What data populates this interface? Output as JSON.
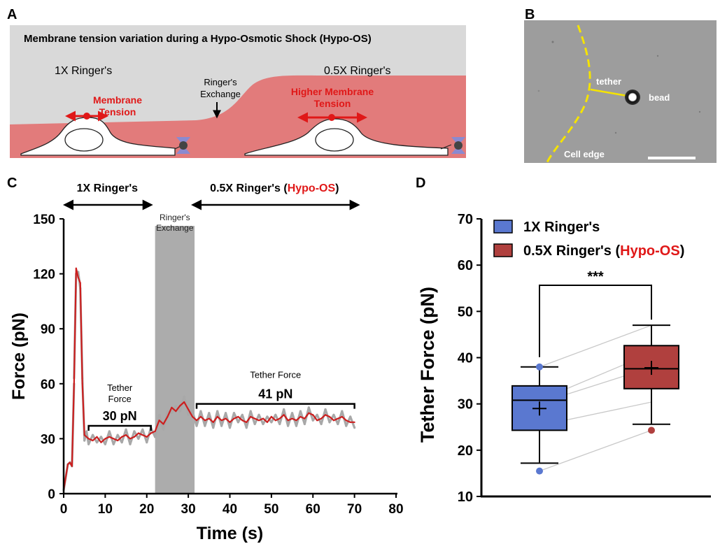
{
  "panels": {
    "a": {
      "letter": "A",
      "title": "Membrane tension variation during a Hypo-Osmotic Shock (Hypo-OS)",
      "left_condition": "1X Ringer's",
      "right_condition": "0.5X Ringer's",
      "exchange_line1": "Ringer's",
      "exchange_line2": "Exchange",
      "left_tension_line1": "Membrane",
      "left_tension_line2": "Tension",
      "right_tension_line1": "Higher Membrane",
      "right_tension_line2": "Tension"
    },
    "b": {
      "letter": "B",
      "tether_label": "tether",
      "bead_label": "bead",
      "cell_edge_label": "Cell edge"
    },
    "c": {
      "letter": "C"
    },
    "d": {
      "letter": "D"
    }
  },
  "colors": {
    "trace_raw": "#a8a8a8",
    "trace_smooth": "#cc1f1f",
    "membrane": "#e27b7b",
    "box_1x": "#5a78d0",
    "box_hypo": "#b0403e",
    "tension_red": "#e01818"
  },
  "chart_data": [
    {
      "type": "line",
      "xlabel": "Time (s)",
      "ylabel": "Force (pN)",
      "xlim": [
        0,
        80
      ],
      "ylim": [
        0,
        150
      ],
      "xticks": [
        0,
        10,
        20,
        30,
        40,
        50,
        60,
        70,
        80
      ],
      "yticks": [
        0,
        30,
        60,
        90,
        120,
        150
      ],
      "phase_labels": {
        "left": "1X Ringer's",
        "right_prefix": "0.5X Ringer's (",
        "right_highlight": "Hypo-OS",
        "right_suffix": ")",
        "exchange_line1": "Ringer's",
        "exchange_line2": "Exchange"
      },
      "phase_ranges": {
        "left": [
          0,
          21
        ],
        "exchange": [
          22,
          31.5
        ],
        "right": [
          31.5,
          70
        ]
      },
      "annotations": [
        {
          "caption_line1": "Tether",
          "caption_line2": "Force",
          "value": "30 pN",
          "x_range": [
            6,
            21
          ],
          "y": 37
        },
        {
          "caption_line1": "Tether Force",
          "caption_line2": "",
          "value": "41 pN",
          "x_range": [
            32,
            70
          ],
          "y": 49
        }
      ],
      "series": [
        {
          "x": [
            0,
            1,
            1.5,
            2,
            2.5,
            3,
            3.5,
            4,
            4.5,
            5,
            5.5,
            6,
            7,
            8,
            9,
            10,
            11,
            12,
            13,
            14,
            15,
            16,
            17,
            18,
            19,
            20,
            21,
            22,
            23,
            24,
            25,
            26,
            27,
            28,
            29,
            30,
            31,
            32,
            33,
            34,
            35,
            36,
            37,
            38,
            39,
            40,
            41,
            42,
            43,
            44,
            45,
            46,
            47,
            48,
            49,
            50,
            51,
            52,
            53,
            54,
            55,
            56,
            57,
            58,
            59,
            60,
            61,
            62,
            63,
            64,
            65,
            66,
            67,
            68,
            69,
            70
          ],
          "values": [
            2,
            16,
            17,
            15,
            60,
            123,
            118,
            115,
            60,
            32,
            31,
            30,
            29,
            31,
            28,
            30,
            31,
            30,
            29,
            31,
            32,
            30,
            31,
            33,
            32,
            31,
            33,
            34,
            40,
            38,
            42,
            47,
            45,
            48,
            50,
            46,
            42,
            40,
            42,
            40,
            41,
            39,
            42,
            40,
            41,
            39,
            41,
            42,
            40,
            39,
            42,
            41,
            40,
            41,
            39,
            42,
            40,
            41,
            43,
            40,
            41,
            40,
            42,
            41,
            44,
            43,
            40,
            41,
            43,
            42,
            40,
            41,
            42,
            40,
            39,
            39
          ]
        }
      ]
    },
    {
      "type": "box",
      "ylabel": "Tether Force (pN)",
      "ylim": [
        10,
        70
      ],
      "yticks": [
        10,
        20,
        30,
        40,
        50,
        60,
        70
      ],
      "legend_position": "top",
      "significance": "***",
      "series": [
        {
          "name": "1X Ringer's",
          "whisker_low": 17.2,
          "q1": 24.3,
          "median": 30.8,
          "q3": 33.9,
          "whisker_high": 38.0,
          "mean": 29.0,
          "outliers": [
            15.5,
            38.0
          ]
        },
        {
          "name_prefix": "0.5X Ringer's (",
          "name_highlight": "Hypo-OS",
          "name_suffix": ")",
          "whisker_low": 25.6,
          "q1": 33.3,
          "median": 37.6,
          "q3": 42.6,
          "whisker_high": 47.0,
          "mean": 37.8,
          "outliers": [
            24.3
          ]
        }
      ],
      "paired_lines": [
        [
          15.5,
          24.3
        ],
        [
          25.3,
          30.4
        ],
        [
          30.2,
          37.9
        ],
        [
          30.8,
          41.0
        ],
        [
          38.0,
          47.0
        ]
      ]
    }
  ]
}
